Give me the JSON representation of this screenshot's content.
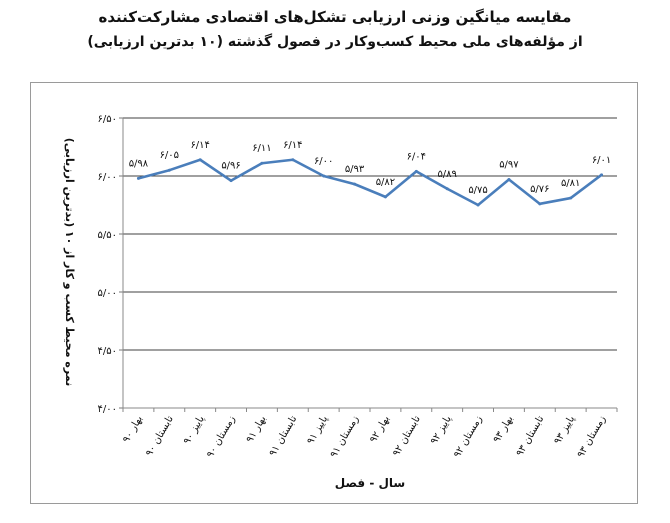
{
  "chart_data": {
    "type": "line",
    "title": "مقایسه میانگین وزنی ارزیابی تشکل‌های اقتصادی مشارکت‌کننده",
    "subtitle": "از مؤلفه‌های ملی محیط کسب‌وکار در فصول گذشته (۱۰ بدترین ارزیابی)",
    "xlabel": "سال - فصل",
    "ylabel": "نمره محیط کسب و کار از ۱۰ (بدترین ارزیابی)",
    "ylim": [
      4.0,
      6.5
    ],
    "yticks": [
      4.0,
      4.5,
      5.0,
      5.5,
      6.0,
      6.5
    ],
    "ytick_labels": [
      "۴/۰۰",
      "۴/۵۰",
      "۵/۰۰",
      "۵/۵۰",
      "۶/۰۰",
      "۶/۵۰"
    ],
    "grid": true,
    "categories": [
      "بهار ۹۰",
      "تابستان ۹۰",
      "پاییز ۹۰",
      "زمستان ۹۰",
      "بهار ۹۱",
      "تابستان ۹۱",
      "پاییز ۹۱",
      "زمستان ۹۱",
      "بهار ۹۲",
      "تابستان ۹۲",
      "پاییز ۹۲",
      "زمستان ۹۲",
      "بهار ۹۳",
      "تابستان ۹۳",
      "پاییز ۹۳",
      "زمستان ۹۳"
    ],
    "values": [
      5.98,
      6.05,
      6.14,
      5.96,
      6.11,
      6.14,
      6.0,
      5.93,
      5.82,
      6.04,
      5.89,
      5.75,
      5.97,
      5.76,
      5.81,
      6.01
    ],
    "data_labels": [
      "۵/۹۸",
      "۶/۰۵",
      "۶/۱۴",
      "۵/۹۶",
      "۶/۱۱",
      "۶/۱۴",
      "۶/۰۰",
      "۵/۹۳",
      "۵/۸۲",
      "۶/۰۴",
      "۵/۸۹",
      "۵/۷۵",
      "۵/۹۷",
      "۵/۷۶",
      "۵/۸۱",
      "۶/۰۱"
    ],
    "line_color": "#4a7ebb"
  }
}
